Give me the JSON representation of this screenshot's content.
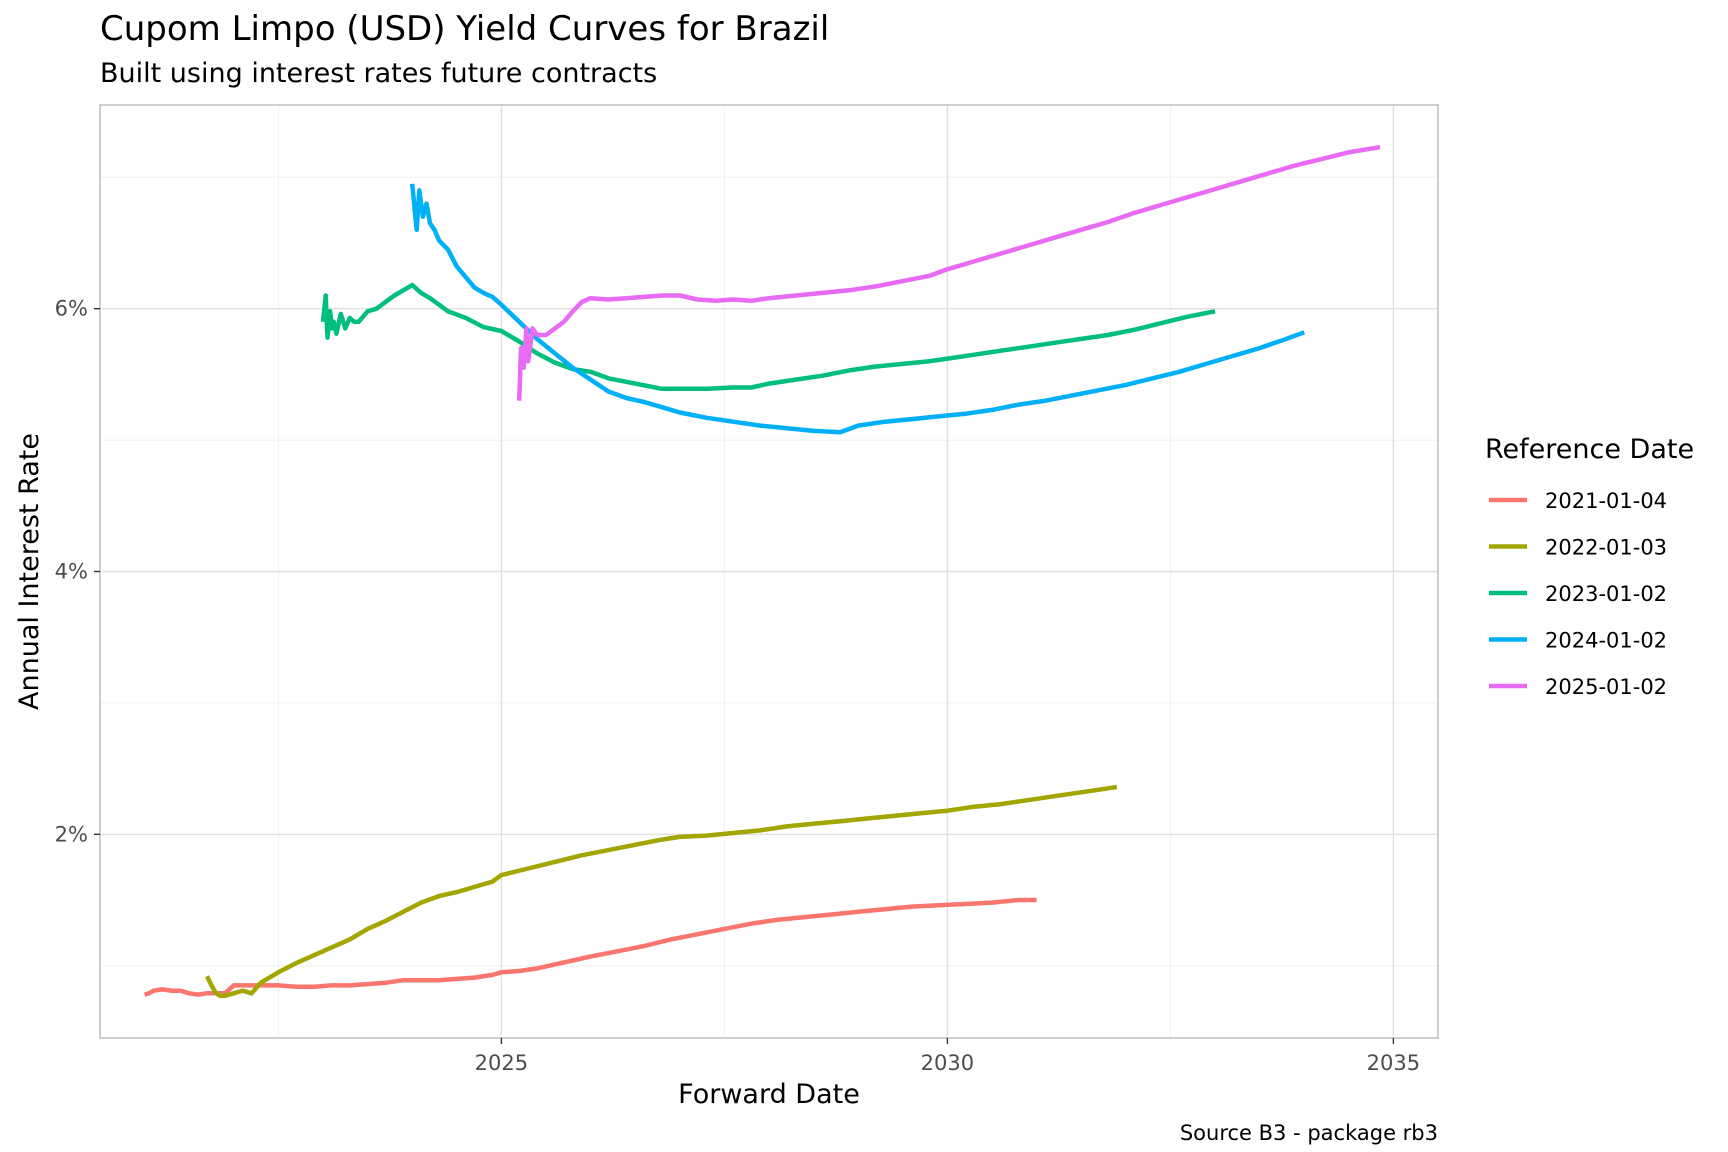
{
  "chart_data": {
    "type": "line",
    "title": "Cupom Limpo (USD) Yield Curves for Brazil",
    "subtitle": "Built using interest rates future contracts",
    "xlabel": "Forward Date",
    "ylabel": "Annual Interest Rate",
    "caption": "Source B3 - package rb3",
    "legend_title": "Reference Date",
    "legend_position": "right",
    "grid": true,
    "xlim": [
      2020.5,
      2035.5
    ],
    "ylim": [
      0.0045,
      0.0755
    ],
    "x_ticks": [
      2025,
      2030,
      2035
    ],
    "x_tick_labels": [
      "2025",
      "2030",
      "2035"
    ],
    "y_ticks": [
      0.02,
      0.04,
      0.06
    ],
    "y_tick_labels": [
      "2%",
      "4%",
      "6%"
    ],
    "series": [
      {
        "name": "2021-01-04",
        "color": "#F8766D",
        "x": [
          2021.0,
          2021.05,
          2021.1,
          2021.2,
          2021.3,
          2021.4,
          2021.5,
          2021.6,
          2021.7,
          2021.8,
          2021.9,
          2022.0,
          2022.1,
          2022.2,
          2022.3,
          2022.5,
          2022.7,
          2022.9,
          2023.1,
          2023.3,
          2023.5,
          2023.7,
          2023.9,
          2024.1,
          2024.3,
          2024.5,
          2024.7,
          2024.9,
          2025.0,
          2025.2,
          2025.4,
          2025.6,
          2025.8,
          2026.0,
          2026.3,
          2026.6,
          2026.9,
          2027.2,
          2027.5,
          2027.8,
          2028.1,
          2028.4,
          2028.7,
          2029.0,
          2029.3,
          2029.6,
          2029.9,
          2030.2,
          2030.5,
          2030.8,
          2031.0
        ],
        "y": [
          0.0078,
          0.0079,
          0.0081,
          0.0082,
          0.0081,
          0.0081,
          0.0079,
          0.0078,
          0.0079,
          0.0079,
          0.0079,
          0.0085,
          0.0085,
          0.0085,
          0.0085,
          0.0085,
          0.0084,
          0.0084,
          0.0085,
          0.0085,
          0.0086,
          0.0087,
          0.0089,
          0.0089,
          0.0089,
          0.009,
          0.0091,
          0.0093,
          0.0095,
          0.0096,
          0.0098,
          0.0101,
          0.0104,
          0.0107,
          0.0111,
          0.0115,
          0.012,
          0.0124,
          0.0128,
          0.0132,
          0.0135,
          0.0137,
          0.0139,
          0.0141,
          0.0143,
          0.0145,
          0.0146,
          0.0147,
          0.0148,
          0.015,
          0.015
        ]
      },
      {
        "name": "2022-01-03",
        "color": "#A3A500",
        "x": [
          2021.7,
          2021.75,
          2021.8,
          2021.85,
          2021.9,
          2022.0,
          2022.05,
          2022.1,
          2022.15,
          2022.2,
          2022.3,
          2022.5,
          2022.7,
          2022.9,
          2023.1,
          2023.3,
          2023.5,
          2023.7,
          2023.9,
          2024.1,
          2024.3,
          2024.5,
          2024.7,
          2024.9,
          2025.0,
          2025.3,
          2025.6,
          2025.9,
          2026.2,
          2026.5,
          2026.8,
          2027.0,
          2027.3,
          2027.6,
          2027.9,
          2028.2,
          2028.5,
          2028.8,
          2029.1,
          2029.4,
          2029.7,
          2030.0,
          2030.3,
          2030.6,
          2030.9,
          2031.2,
          2031.5,
          2031.8,
          2031.9
        ],
        "y": [
          0.0092,
          0.0085,
          0.0079,
          0.0077,
          0.0077,
          0.0079,
          0.008,
          0.0081,
          0.008,
          0.0079,
          0.0087,
          0.0095,
          0.0102,
          0.0108,
          0.0114,
          0.012,
          0.0128,
          0.0134,
          0.0141,
          0.0148,
          0.0153,
          0.0156,
          0.016,
          0.0164,
          0.0169,
          0.0174,
          0.0179,
          0.0184,
          0.0188,
          0.0192,
          0.0196,
          0.0198,
          0.0199,
          0.0201,
          0.0203,
          0.0206,
          0.0208,
          0.021,
          0.0212,
          0.0214,
          0.0216,
          0.0218,
          0.0221,
          0.0223,
          0.0226,
          0.0229,
          0.0232,
          0.0235,
          0.0236
        ]
      },
      {
        "name": "2023-01-02",
        "color": "#00BF7D",
        "x": [
          2023.0,
          2023.03,
          2023.05,
          2023.08,
          2023.1,
          2023.12,
          2023.15,
          2023.2,
          2023.25,
          2023.3,
          2023.35,
          2023.4,
          2023.5,
          2023.6,
          2023.7,
          2023.8,
          2023.9,
          2024.0,
          2024.1,
          2024.2,
          2024.3,
          2024.4,
          2024.6,
          2024.8,
          2025.0,
          2025.2,
          2025.4,
          2025.6,
          2025.8,
          2026.0,
          2026.2,
          2026.5,
          2026.8,
          2027.0,
          2027.3,
          2027.6,
          2027.8,
          2028.0,
          2028.3,
          2028.6,
          2028.9,
          2029.2,
          2029.5,
          2029.8,
          2030.0,
          2030.3,
          2030.6,
          2030.9,
          2031.2,
          2031.5,
          2031.8,
          2032.1,
          2032.4,
          2032.7,
          2033.0
        ],
        "y": [
          0.059,
          0.061,
          0.0578,
          0.0598,
          0.0585,
          0.059,
          0.0581,
          0.0596,
          0.0585,
          0.0593,
          0.059,
          0.059,
          0.0598,
          0.06,
          0.0605,
          0.061,
          0.0614,
          0.0618,
          0.0612,
          0.0608,
          0.0603,
          0.0598,
          0.0593,
          0.0586,
          0.0583,
          0.0575,
          0.0566,
          0.0559,
          0.0554,
          0.0552,
          0.0547,
          0.0543,
          0.0539,
          0.0539,
          0.0539,
          0.054,
          0.054,
          0.0543,
          0.0546,
          0.0549,
          0.0553,
          0.0556,
          0.0558,
          0.056,
          0.0562,
          0.0565,
          0.0568,
          0.0571,
          0.0574,
          0.0577,
          0.058,
          0.0584,
          0.0589,
          0.0594,
          0.0598
        ]
      },
      {
        "name": "2024-01-02",
        "color": "#00B0F6",
        "x": [
          2024.0,
          2024.05,
          2024.08,
          2024.12,
          2024.16,
          2024.2,
          2024.25,
          2024.3,
          2024.4,
          2024.5,
          2024.6,
          2024.7,
          2024.8,
          2024.9,
          2025.0,
          2025.2,
          2025.4,
          2025.6,
          2025.8,
          2026.0,
          2026.2,
          2026.4,
          2026.6,
          2026.8,
          2027.0,
          2027.3,
          2027.6,
          2027.9,
          2028.2,
          2028.5,
          2028.8,
          2029.0,
          2029.3,
          2029.6,
          2029.9,
          2030.2,
          2030.5,
          2030.8,
          2031.1,
          2031.4,
          2031.7,
          2032.0,
          2032.3,
          2032.6,
          2032.9,
          2033.2,
          2033.5,
          2033.8,
          2034.0
        ],
        "y": [
          0.0695,
          0.066,
          0.069,
          0.067,
          0.068,
          0.0665,
          0.066,
          0.0652,
          0.0645,
          0.0632,
          0.0624,
          0.0616,
          0.0612,
          0.0609,
          0.0603,
          0.059,
          0.0577,
          0.0566,
          0.0555,
          0.0546,
          0.0537,
          0.0532,
          0.0529,
          0.0525,
          0.0521,
          0.0517,
          0.0514,
          0.0511,
          0.0509,
          0.0507,
          0.0506,
          0.0511,
          0.0514,
          0.0516,
          0.0518,
          0.052,
          0.0523,
          0.0527,
          0.053,
          0.0534,
          0.0538,
          0.0542,
          0.0547,
          0.0552,
          0.0558,
          0.0564,
          0.057,
          0.0577,
          0.0582
        ]
      },
      {
        "name": "2025-01-02",
        "color": "#E76BF3",
        "x": [
          2025.2,
          2025.22,
          2025.25,
          2025.28,
          2025.3,
          2025.35,
          2025.4,
          2025.5,
          2025.6,
          2025.7,
          2025.8,
          2025.9,
          2026.0,
          2026.2,
          2026.4,
          2026.6,
          2026.8,
          2027.0,
          2027.2,
          2027.4,
          2027.6,
          2027.8,
          2028.0,
          2028.3,
          2028.6,
          2028.9,
          2029.2,
          2029.5,
          2029.8,
          2030.0,
          2030.3,
          2030.6,
          2030.9,
          2031.2,
          2031.5,
          2031.8,
          2032.1,
          2032.4,
          2032.7,
          2033.0,
          2033.3,
          2033.6,
          2033.9,
          2034.2,
          2034.5,
          2034.85
        ],
        "y": [
          0.053,
          0.057,
          0.0555,
          0.0585,
          0.056,
          0.0585,
          0.058,
          0.058,
          0.0585,
          0.059,
          0.0598,
          0.0605,
          0.0608,
          0.0607,
          0.0608,
          0.0609,
          0.061,
          0.061,
          0.0607,
          0.0606,
          0.0607,
          0.0606,
          0.0608,
          0.061,
          0.0612,
          0.0614,
          0.0617,
          0.0621,
          0.0625,
          0.063,
          0.0636,
          0.0642,
          0.0648,
          0.0654,
          0.066,
          0.0666,
          0.0673,
          0.0679,
          0.0685,
          0.0691,
          0.0697,
          0.0703,
          0.0709,
          0.0714,
          0.0719,
          0.0723
        ]
      }
    ]
  }
}
